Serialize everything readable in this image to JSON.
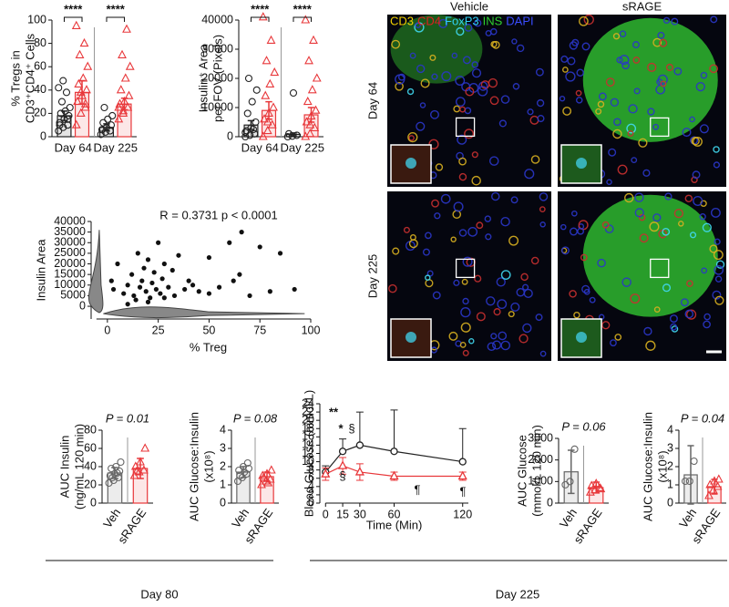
{
  "chart_data": [
    {
      "type": "bar",
      "ylabel": [
        "% Tregs in",
        "CD3⁺CD4⁺ Cells"
      ],
      "categories": [
        "Day 64",
        "Day 225"
      ],
      "ylim": [
        0,
        100
      ],
      "yticks": [
        0,
        20,
        40,
        60,
        80,
        100
      ],
      "annotations": [
        "****",
        "****"
      ],
      "series": [
        {
          "color": "#222222",
          "marker": "circle",
          "values": [
            18,
            8
          ],
          "errors": [
            4,
            3
          ],
          "points": [
            [
              5,
              8,
              10,
              12,
              15,
              18,
              20,
              22,
              25,
              30,
              38,
              42,
              48,
              15,
              10
            ],
            [
              2,
              4,
              5,
              6,
              8,
              10,
              12,
              15,
              18,
              25
            ]
          ]
        },
        {
          "color": "#e8373a",
          "marker": "triangle",
          "values": [
            38,
            28
          ],
          "errors": [
            10,
            5
          ],
          "points": [
            [
              10,
              20,
              25,
              30,
              35,
              40,
              45,
              50,
              60,
              70,
              80,
              95,
              38,
              28
            ],
            [
              15,
              20,
              25,
              28,
              30,
              35,
              40,
              50,
              60,
              70,
              92,
              25,
              22
            ]
          ]
        }
      ]
    },
    {
      "type": "bar",
      "ylabel": [
        "Insulin⁺ Area",
        "per FOV (Pixels)"
      ],
      "categories": [
        "Day 64",
        "Day 225"
      ],
      "ylim": [
        0,
        40000
      ],
      "yticks": [
        0,
        10000,
        20000,
        30000,
        40000
      ],
      "annotations": [
        "****",
        "****"
      ],
      "series": [
        {
          "color": "#222222",
          "marker": "circle",
          "values": [
            4000,
            800
          ],
          "errors": [
            1500,
            500
          ],
          "points": [
            [
              0,
              500,
              1000,
              2000,
              3000,
              5000,
              8000,
              12000,
              16000,
              20000,
              2500,
              1500
            ],
            [
              0,
              200,
              500,
              1000,
              15000
            ]
          ]
        },
        {
          "color": "#e8373a",
          "marker": "triangle",
          "values": [
            9000,
            7500
          ],
          "errors": [
            3000,
            2500
          ],
          "points": [
            [
              0,
              2000,
              4000,
              6000,
              8000,
              10000,
              14000,
              18000,
              22000,
              26000,
              33000,
              41000,
              5000
            ],
            [
              0,
              1000,
              3000,
              5000,
              7000,
              9000,
              12000,
              16000,
              20000,
              26000,
              33000,
              40000,
              4000
            ]
          ]
        }
      ]
    },
    {
      "type": "scatter",
      "title": "R = 0.3731 p < 0.0001",
      "xlabel": "% Treg",
      "ylabel": [
        "Insulin Area"
      ],
      "color": "#111111",
      "xlim": [
        -8,
        100
      ],
      "xticks": [
        0,
        25,
        50,
        75,
        100
      ],
      "ylim": [
        -6000,
        40000
      ],
      "yticks": [
        0,
        5000,
        10000,
        15000,
        20000,
        25000,
        30000,
        35000,
        40000
      ],
      "x": [
        2,
        3,
        5,
        8,
        10,
        12,
        13,
        15,
        16,
        17,
        18,
        19,
        20,
        21,
        22,
        23,
        24,
        25,
        26,
        27,
        28,
        30,
        32,
        33,
        35,
        38,
        40,
        42,
        45,
        50,
        50,
        55,
        60,
        62,
        65,
        66,
        70,
        75,
        80,
        85,
        92,
        14,
        20,
        28,
        10
      ],
      "values": [
        12000,
        8000,
        20000,
        6000,
        10000,
        15000,
        5000,
        25000,
        9000,
        12000,
        18000,
        7000,
        22000,
        4000,
        11000,
        16000,
        8000,
        30000,
        6000,
        13000,
        20000,
        9000,
        17000,
        5000,
        24000,
        8000,
        12000,
        10000,
        7000,
        6000,
        23000,
        9000,
        30000,
        12000,
        15000,
        35000,
        5000,
        28000,
        7000,
        25000,
        8000,
        3000,
        2000,
        4000,
        1000
      ]
    },
    {
      "type": "bar",
      "title": "P = 0.01",
      "ylabel": [
        "AUC Insulin",
        "(ng/mL 120 min)"
      ],
      "categories": [
        "Veh",
        "sRAGE"
      ],
      "ylim": [
        0,
        80
      ],
      "yticks": [
        0,
        20,
        40,
        60,
        80
      ],
      "colors": [
        "#666666",
        "#e8373a"
      ],
      "markers": [
        "circle",
        "triangle"
      ],
      "values": [
        33,
        38
      ],
      "errors": [
        6,
        11
      ],
      "points": [
        [
          22,
          25,
          28,
          30,
          32,
          35,
          38,
          40,
          45,
          28,
          33
        ],
        [
          30,
          34,
          36,
          40,
          45,
          60,
          35
        ]
      ]
    },
    {
      "type": "bar",
      "title": "P = 0.08",
      "ylabel": [
        "AUC Glucose:Insulin",
        "(x10⁸)"
      ],
      "categories": [
        "Veh",
        "sRAGE"
      ],
      "ylim": [
        0,
        4
      ],
      "yticks": [
        0,
        1,
        2,
        3,
        4
      ],
      "colors": [
        "#666666",
        "#e8373a"
      ],
      "markers": [
        "circle",
        "triangle"
      ],
      "values": [
        1.7,
        1.45
      ],
      "errors": [
        0.3,
        0.25
      ],
      "points": [
        [
          1.2,
          1.4,
          1.6,
          1.8,
          2.0,
          2.2,
          1.5,
          1.7,
          1.9
        ],
        [
          1.0,
          1.2,
          1.3,
          1.5,
          1.6,
          1.8,
          1.4,
          1.1
        ]
      ]
    },
    {
      "type": "line",
      "ylabel": [
        "Blood Glucose (mmol/L)"
      ],
      "xlabel": "Time (Min)",
      "x": [
        0,
        15,
        30,
        60,
        120
      ],
      "xlim": [
        -5,
        125
      ],
      "xticks": [
        0,
        15,
        30,
        60,
        120
      ],
      "ylim": [
        0,
        24
      ],
      "yticks": [
        0,
        2,
        4,
        6,
        8,
        10,
        12,
        14,
        16,
        18,
        20,
        22,
        24
      ],
      "annotations": [
        "**",
        "*",
        "§",
        "§",
        "¶",
        "¶"
      ],
      "series": [
        {
          "color": "#222222",
          "marker": "circle",
          "values": [
            7.5,
            12.5,
            14,
            12.5,
            10
          ],
          "errors": [
            1.5,
            3,
            8,
            10,
            8
          ]
        },
        {
          "color": "#e8373a",
          "marker": "triangle",
          "values": [
            7,
            9,
            7.5,
            6.5,
            6.5
          ],
          "errors": [
            1.5,
            2,
            2,
            1,
            1
          ]
        }
      ]
    },
    {
      "type": "bar",
      "title": "P = 0.06",
      "ylabel": [
        "AUC Glucose",
        "(mmol/L 120 min)"
      ],
      "categories": [
        "Veh",
        "sRAGE"
      ],
      "ylim": [
        0,
        3000
      ],
      "yticks": [
        0,
        1000,
        2000,
        3000
      ],
      "colors": [
        "#666666",
        "#e8373a"
      ],
      "markers": [
        "circle",
        "triangle"
      ],
      "values": [
        1450,
        720
      ],
      "errors": [
        1000,
        250
      ],
      "points": [
        [
          850,
          1000,
          2500
        ],
        [
          500,
          600,
          700,
          800,
          900,
          650
        ]
      ]
    },
    {
      "type": "bar",
      "title": "P = 0.04",
      "ylabel": [
        "AUC Glucose:Insulin",
        "(x10⁸)"
      ],
      "categories": [
        "Veh",
        "sRAGE"
      ],
      "ylim": [
        0,
        4
      ],
      "yticks": [
        0,
        1,
        2,
        3,
        4
      ],
      "colors": [
        "#666666",
        "#e8373a"
      ],
      "markers": [
        "circle",
        "triangle"
      ],
      "values": [
        1.55,
        0.9
      ],
      "errors": [
        1.6,
        0.4
      ],
      "points": [
        [
          1.2,
          1.2,
          2.3
        ],
        [
          0.4,
          0.7,
          0.9,
          1.0,
          1.2,
          1.3
        ]
      ]
    }
  ],
  "figure_images": {
    "columns": [
      "Vehicle",
      "sRAGE"
    ],
    "rows": [
      "Day 64",
      "Day 225"
    ],
    "channels": [
      {
        "text": "CD3",
        "color": "#f0d000"
      },
      {
        "text": "CD4",
        "color": "#e02020"
      },
      {
        "text": "FoxP3",
        "color": "#30d0f0"
      },
      {
        "text": "INS",
        "color": "#30d030"
      },
      {
        "text": "DAPI",
        "color": "#3a4cff"
      }
    ]
  },
  "panel_groups": [
    "Day 80",
    "Day 225"
  ]
}
